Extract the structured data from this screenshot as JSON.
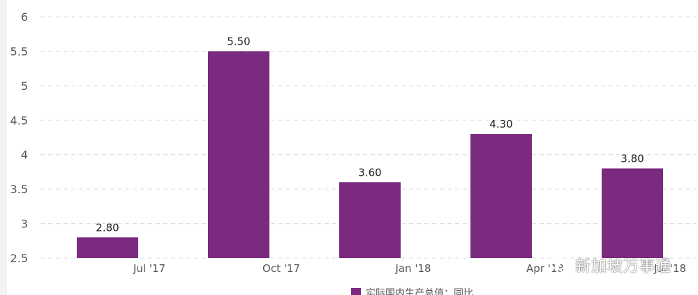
{
  "chart_data": {
    "type": "bar",
    "categories": [
      "Jul '17",
      "Oct '17",
      "Jan '18",
      "Apr '18",
      "Jul '18"
    ],
    "series": [
      {
        "name": "实际国内生产总值：同比",
        "values": [
          2.8,
          5.5,
          3.6,
          4.3,
          3.8
        ],
        "color": "#7a2b80"
      }
    ],
    "data_labels": [
      "2.80",
      "5.50",
      "3.60",
      "4.30",
      "3.80"
    ],
    "y_ticks": [
      "6",
      "5.5",
      "5",
      "4.5",
      "4",
      "3.5",
      "3",
      "2.5"
    ],
    "ylim": [
      2.5,
      6
    ],
    "grid": true,
    "legend_position": "bottom-center",
    "title": "",
    "xlabel": "",
    "ylabel": ""
  },
  "watermark": {
    "text": "新加坡万事通",
    "icon": "wechat-icon"
  }
}
